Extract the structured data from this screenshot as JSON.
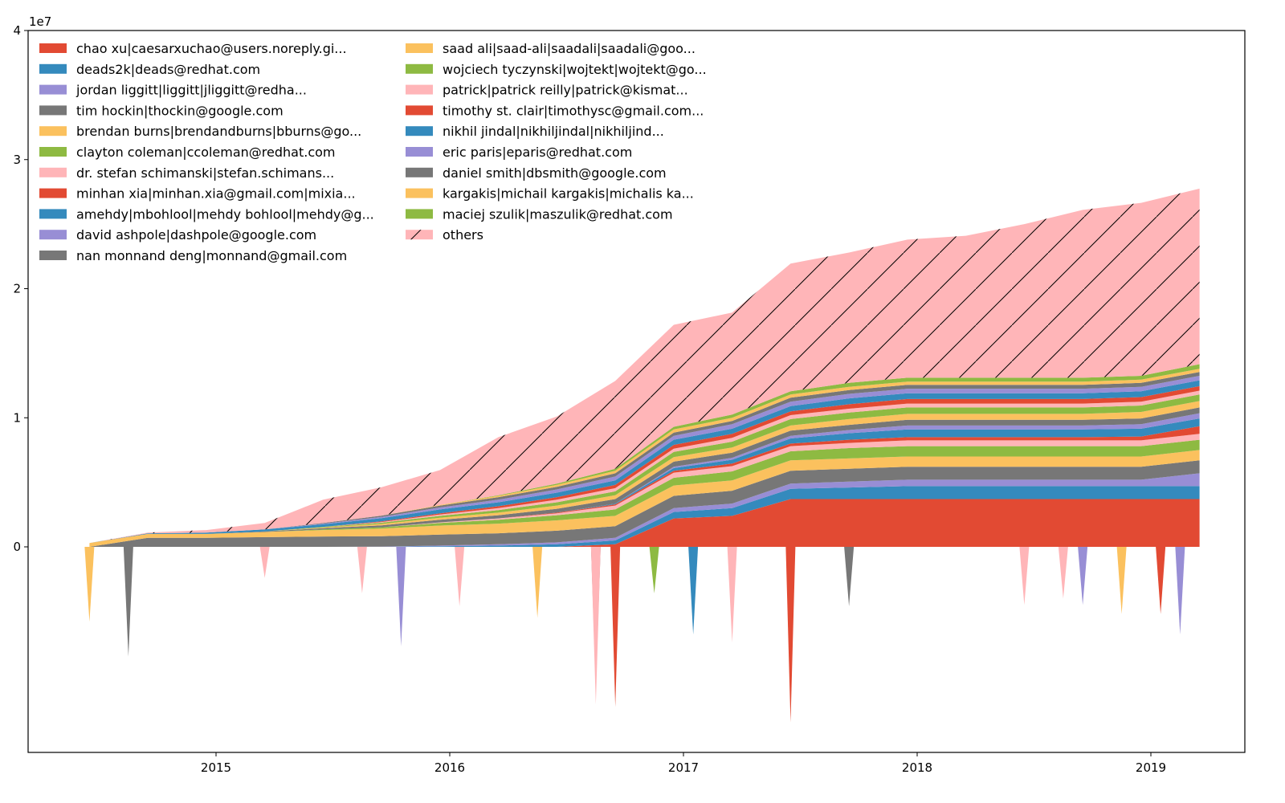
{
  "chart_data": {
    "type": "area",
    "stacked": true,
    "title": "",
    "xlabel": "",
    "ylabel": "",
    "y_multiplier_label": "1e7",
    "ylim": [
      -1.59,
      4.0
    ],
    "y_ticks": [
      "0",
      "1",
      "2",
      "3",
      "4"
    ],
    "x_ticks": [
      "2015",
      "2016",
      "2017",
      "2018",
      "2019"
    ],
    "grid": false,
    "legend_placement": "upper-left, two columns",
    "x": [
      "2014-06",
      "2014-09",
      "2014-12",
      "2015-03",
      "2015-06",
      "2015-09",
      "2015-12",
      "2016-03",
      "2016-06",
      "2016-09",
      "2016-12",
      "2017-03",
      "2017-06",
      "2017-09",
      "2017-12",
      "2018-03",
      "2018-06",
      "2018-09",
      "2018-12",
      "2019-03"
    ],
    "series": [
      {
        "name": "chao xu|caesarxuchao@users.noreply.gi...",
        "color": "#E24A33",
        "values": [
          0,
          0,
          0,
          0,
          0,
          0,
          0,
          0,
          0,
          0.02,
          0.22,
          0.24,
          0.37,
          0.37,
          0.37,
          0.37,
          0.37,
          0.37,
          0.37,
          0.37
        ]
      },
      {
        "name": "deads2k|deads@redhat.com",
        "color": "#348ABD",
        "values": [
          0,
          0,
          0,
          0,
          0,
          0,
          0.005,
          0.01,
          0.02,
          0.03,
          0.05,
          0.06,
          0.08,
          0.09,
          0.1,
          0.1,
          0.1,
          0.1,
          0.1,
          0.1
        ]
      },
      {
        "name": "jordan liggitt|liggitt|jliggitt@redha...",
        "color": "#988ED5",
        "values": [
          0,
          0,
          0,
          0,
          0,
          0.002,
          0.005,
          0.01,
          0.015,
          0.02,
          0.03,
          0.035,
          0.04,
          0.045,
          0.05,
          0.05,
          0.05,
          0.05,
          0.05,
          0.1
        ]
      },
      {
        "name": "tim hockin|thockin@google.com",
        "color": "#777777",
        "values": [
          0,
          0.07,
          0.07,
          0.075,
          0.08,
          0.08,
          0.085,
          0.085,
          0.09,
          0.09,
          0.095,
          0.1,
          0.1,
          0.1,
          0.1,
          0.1,
          0.1,
          0.1,
          0.1,
          0.1
        ]
      },
      {
        "name": "brendan burns|brendandburns|bburns@go...",
        "color": "#FBC15E",
        "values": [
          0.03,
          0.03,
          0.03,
          0.04,
          0.05,
          0.06,
          0.07,
          0.075,
          0.08,
          0.08,
          0.08,
          0.08,
          0.08,
          0.08,
          0.08,
          0.08,
          0.08,
          0.08,
          0.08,
          0.08
        ]
      },
      {
        "name": "clayton coleman|ccoleman@redhat.com",
        "color": "#8EBA42",
        "values": [
          0,
          0,
          0,
          0,
          0.005,
          0.01,
          0.02,
          0.03,
          0.04,
          0.05,
          0.06,
          0.07,
          0.07,
          0.08,
          0.08,
          0.08,
          0.08,
          0.08,
          0.08,
          0.08
        ]
      },
      {
        "name": "dr. stefan schimanski|stefan.schimans...",
        "color": "#FFB5B8",
        "values": [
          0,
          0,
          0,
          0,
          0,
          0,
          0.005,
          0.01,
          0.015,
          0.03,
          0.04,
          0.04,
          0.04,
          0.04,
          0.045,
          0.045,
          0.045,
          0.045,
          0.045,
          0.045
        ]
      },
      {
        "name": "minhan xia|minhan.xia@gmail.com|mixia...",
        "color": "#E24A33",
        "values": [
          0,
          0,
          0,
          0,
          0,
          0,
          0,
          0,
          0.005,
          0.01,
          0.015,
          0.02,
          0.02,
          0.025,
          0.025,
          0.025,
          0.025,
          0.025,
          0.03,
          0.06
        ]
      },
      {
        "name": "amehdy|mbohlool|mehdy bohlool|mehdy@g...",
        "color": "#348ABD",
        "values": [
          0,
          0,
          0,
          0,
          0,
          0,
          0,
          0,
          0,
          0.005,
          0.02,
          0.03,
          0.04,
          0.05,
          0.06,
          0.06,
          0.06,
          0.06,
          0.06,
          0.06
        ]
      },
      {
        "name": "david ashpole|dashpole@google.com",
        "color": "#988ED5",
        "values": [
          0,
          0,
          0,
          0,
          0,
          0,
          0,
          0,
          0,
          0,
          0.01,
          0.015,
          0.02,
          0.025,
          0.03,
          0.03,
          0.03,
          0.03,
          0.035,
          0.04
        ]
      },
      {
        "name": "nan monnand deng|monnand@gmail.com",
        "color": "#777777",
        "values": [
          0,
          0,
          0,
          0.005,
          0.01,
          0.015,
          0.02,
          0.025,
          0.03,
          0.035,
          0.04,
          0.04,
          0.04,
          0.04,
          0.045,
          0.045,
          0.045,
          0.045,
          0.045,
          0.045
        ]
      },
      {
        "name": "saad ali|saad-ali|saadali|saadali@goo...",
        "color": "#FBC15E",
        "values": [
          0,
          0,
          0,
          0,
          0.005,
          0.01,
          0.015,
          0.02,
          0.025,
          0.03,
          0.035,
          0.04,
          0.04,
          0.045,
          0.045,
          0.045,
          0.045,
          0.045,
          0.05,
          0.05
        ]
      },
      {
        "name": "wojciech tyczynski|wojtekt|wojtekt@go...",
        "color": "#8EBA42",
        "values": [
          0,
          0,
          0,
          0,
          0.005,
          0.01,
          0.015,
          0.02,
          0.025,
          0.03,
          0.04,
          0.045,
          0.05,
          0.05,
          0.05,
          0.05,
          0.05,
          0.05,
          0.05,
          0.05
        ]
      },
      {
        "name": "patrick|patrick reilly|patrick@kismat...",
        "color": "#FFB5B8",
        "values": [
          0,
          0,
          0,
          0,
          0,
          0.005,
          0.01,
          0.015,
          0.02,
          0.025,
          0.025,
          0.03,
          0.03,
          0.03,
          0.03,
          0.03,
          0.03,
          0.03,
          0.03,
          0.03
        ]
      },
      {
        "name": "timothy st. clair|timothysc@gmail.com...",
        "color": "#E24A33",
        "values": [
          0,
          0,
          0,
          0,
          0,
          0.005,
          0.01,
          0.015,
          0.02,
          0.025,
          0.03,
          0.03,
          0.03,
          0.035,
          0.035,
          0.035,
          0.035,
          0.035,
          0.035,
          0.035
        ]
      },
      {
        "name": "nikhil jindal|nikhiljindal|nikhiljind...",
        "color": "#348ABD",
        "values": [
          0,
          0.005,
          0.01,
          0.015,
          0.02,
          0.025,
          0.03,
          0.03,
          0.035,
          0.035,
          0.04,
          0.04,
          0.04,
          0.045,
          0.045,
          0.045,
          0.045,
          0.045,
          0.045,
          0.045
        ]
      },
      {
        "name": "eric paris|eparis@redhat.com",
        "color": "#988ED5",
        "values": [
          0,
          0,
          0,
          0,
          0.005,
          0.01,
          0.015,
          0.02,
          0.025,
          0.03,
          0.03,
          0.035,
          0.035,
          0.035,
          0.035,
          0.035,
          0.035,
          0.035,
          0.035,
          0.035
        ]
      },
      {
        "name": "daniel smith|dbsmith@google.com",
        "color": "#777777",
        "values": [
          0,
          0,
          0,
          0,
          0.005,
          0.01,
          0.015,
          0.02,
          0.02,
          0.025,
          0.025,
          0.025,
          0.03,
          0.03,
          0.03,
          0.03,
          0.03,
          0.03,
          0.03,
          0.03
        ]
      },
      {
        "name": "kargakis|michail kargakis|michalis ka...",
        "color": "#FBC15E",
        "values": [
          0,
          0,
          0,
          0,
          0,
          0,
          0.005,
          0.01,
          0.015,
          0.02,
          0.025,
          0.025,
          0.025,
          0.025,
          0.025,
          0.025,
          0.025,
          0.025,
          0.025,
          0.025
        ]
      },
      {
        "name": "maciej szulik|maszulik@redhat.com",
        "color": "#8EBA42",
        "values": [
          0,
          0,
          0,
          0,
          0,
          0,
          0,
          0.005,
          0.01,
          0.015,
          0.02,
          0.025,
          0.025,
          0.03,
          0.03,
          0.03,
          0.03,
          0.03,
          0.03,
          0.035
        ]
      },
      {
        "name": "others",
        "color": "#FFB5B8",
        "hatch": "/",
        "values": [
          0,
          0.005,
          0.02,
          0.05,
          0.18,
          0.22,
          0.27,
          0.45,
          0.52,
          0.68,
          0.79,
          0.79,
          0.99,
          1.01,
          1.07,
          1.1,
          1.19,
          1.3,
          1.34,
          1.36
        ]
      }
    ],
    "negative_spikes": [
      {
        "date": "2014-06",
        "series": "brendan burns|brendandburns|bburns@go...",
        "value": -0.58
      },
      {
        "date": "2014-08",
        "series": "tim hockin|thockin@google.com",
        "value": -0.85
      },
      {
        "date": "2015-03",
        "series": "others",
        "value": -0.24
      },
      {
        "date": "2015-08",
        "series": "others",
        "value": -0.36
      },
      {
        "date": "2015-10",
        "series": "jordan liggitt|liggitt|jliggitt@redha...",
        "value": -0.77
      },
      {
        "date": "2016-01",
        "series": "others",
        "value": -0.46
      },
      {
        "date": "2016-05",
        "series": "saad ali|saad-ali|saadali|saadali@goo...",
        "value": -0.55
      },
      {
        "date": "2016-08",
        "series": "tim hockin|thockin@google.com",
        "value": -1.1
      },
      {
        "date": "2016-08",
        "series": "others",
        "value": -1.22
      },
      {
        "date": "2016-09",
        "series": "chao xu|caesarxuchao@users.noreply.gi...",
        "value": -1.24
      },
      {
        "date": "2016-11",
        "series": "clayton coleman|ccoleman@redhat.com",
        "value": -0.36
      },
      {
        "date": "2017-01",
        "series": "amehdy|mbohlool|mehdy bohlool|mehdy@g...",
        "value": -0.68
      },
      {
        "date": "2017-03",
        "series": "others",
        "value": -0.74
      },
      {
        "date": "2017-06",
        "series": "chao xu|caesarxuchao@users.noreply.gi...",
        "value": -1.36
      },
      {
        "date": "2017-09",
        "series": "tim hockin|thockin@google.com",
        "value": -0.46
      },
      {
        "date": "2018-06",
        "series": "others",
        "value": -0.45
      },
      {
        "date": "2018-08",
        "series": "others",
        "value": -0.4
      },
      {
        "date": "2018-09",
        "series": "eric paris|eparis@redhat.com",
        "value": -0.45
      },
      {
        "date": "2018-11",
        "series": "kargakis|michail kargakis|michalis ka...",
        "value": -0.52
      },
      {
        "date": "2019-01",
        "series": "minhan xia|minhan.xia@gmail.com|mixia...",
        "value": -0.52
      },
      {
        "date": "2019-02",
        "series": "eric paris|eparis@redhat.com",
        "value": -0.68
      }
    ]
  }
}
